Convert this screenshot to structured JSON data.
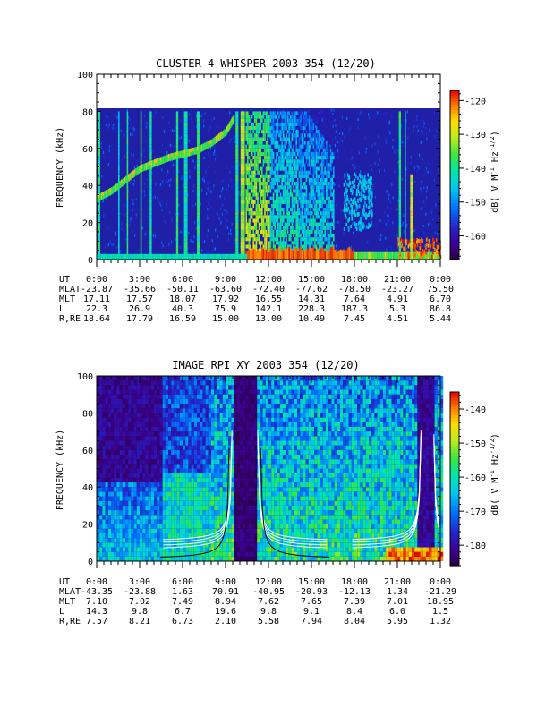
{
  "chart_data": [
    {
      "type": "heatmap",
      "title": "CLUSTER 4 WHISPER 2003 354 (12/20)",
      "ylabel": "FREQUENCY (kHz)",
      "ylim": [
        0,
        100
      ],
      "yticks": [
        "0",
        "20",
        "40",
        "60",
        "80",
        "100"
      ],
      "xlim": [
        0,
        24
      ],
      "data_ceiling_khz": 80,
      "colorbar": {
        "label": "dB( V M⁻¹ Hz⁻¹ᐟ²)",
        "label_main": "dB( V M",
        "label_exp1": "-1",
        "label_mid": " Hz",
        "label_exp2": "-1/2",
        "label_end": ")",
        "range": [
          -167,
          -117
        ],
        "ticks": [
          "-120",
          "-130",
          "-140",
          "-150",
          "-160"
        ],
        "tick_values": [
          -120,
          -130,
          -140,
          -150,
          -160
        ]
      },
      "row_labels": [
        "UT",
        "MLAT",
        "MLT",
        "L",
        "R,RE"
      ],
      "rows": [
        [
          "0:00",
          "3:00",
          "6:00",
          "9:00",
          "12:00",
          "15:00",
          "18:00",
          "21:00",
          "0:00"
        ],
        [
          "-23.87",
          "-35.66",
          "-50.11",
          "-63.60",
          "-72.40",
          "-77.62",
          "-78.50",
          "-23.27",
          "75.50"
        ],
        [
          "17.11",
          "17.57",
          "18.07",
          "17.92",
          "16.55",
          "14.31",
          "7.64",
          "4.91",
          "6.70"
        ],
        [
          "22.3",
          "26.9",
          "40.3",
          "75.9",
          "142.1",
          "228.3",
          "187.3",
          "5.3",
          "86.8"
        ],
        [
          "18.64",
          "17.79",
          "16.59",
          "15.00",
          "13.00",
          "10.49",
          "7.45",
          "4.51",
          "5.44"
        ]
      ]
    },
    {
      "type": "heatmap",
      "title": "IMAGE RPI XY 2003 354 (12/20)",
      "ylabel": "FREQUENCY (kHz)",
      "ylim": [
        0,
        100
      ],
      "yticks": [
        "0",
        "20",
        "40",
        "60",
        "80",
        "100"
      ],
      "xlim": [
        0,
        24
      ],
      "colorbar": {
        "label": "dB( V M⁻¹ Hz⁻¹ᐟ²)",
        "label_main": "dB( V M",
        "label_exp1": "-1",
        "label_mid": " Hz",
        "label_exp2": "-1/2",
        "label_end": ")",
        "range": [
          -186,
          -135
        ],
        "ticks": [
          "-140",
          "-150",
          "-160",
          "-170",
          "-180"
        ],
        "tick_values": [
          -140,
          -150,
          -160,
          -170,
          -180
        ]
      },
      "row_labels": [
        "UT",
        "MLAT",
        "MLT",
        "L",
        "R,RE"
      ],
      "rows": [
        [
          "0:00",
          "3:00",
          "6:00",
          "9:00",
          "12:00",
          "15:00",
          "18:00",
          "21:00",
          "0:00"
        ],
        [
          "-43.35",
          "-23.88",
          "1.63",
          "70.91",
          "-40.95",
          "-20.93",
          "-12.13",
          "1.34",
          "-21.29"
        ],
        [
          "7.10",
          "7.02",
          "7.49",
          "8.94",
          "7.62",
          "7.65",
          "7.39",
          "7.01",
          "18.95"
        ],
        [
          "14.3",
          "9.8",
          "6.7",
          "19.6",
          "9.8",
          "9.1",
          "8.4",
          "6.0",
          "1.5"
        ],
        [
          "7.57",
          "8.21",
          "6.73",
          "2.10",
          "5.58",
          "7.94",
          "8.04",
          "5.95",
          "1.32"
        ]
      ]
    }
  ]
}
